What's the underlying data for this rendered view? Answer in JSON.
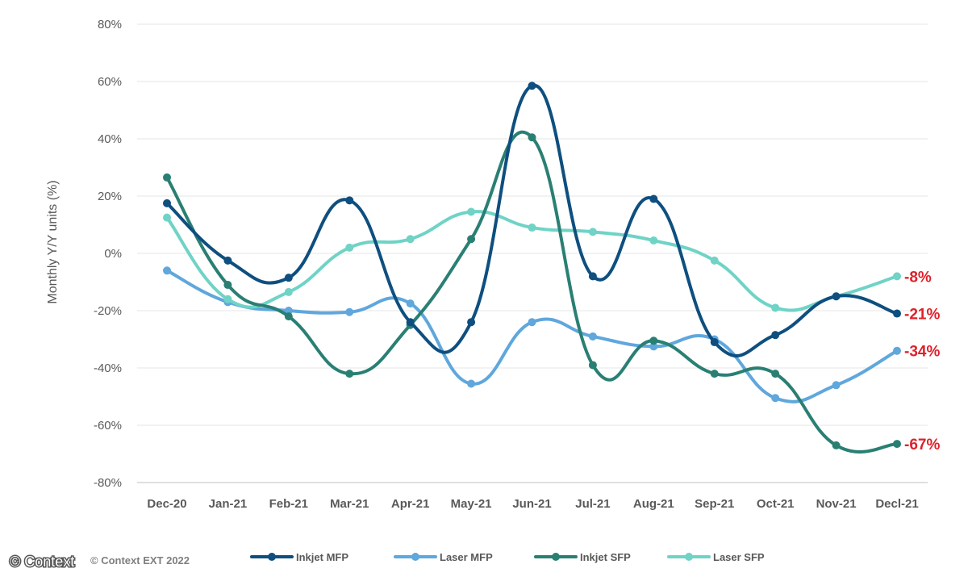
{
  "chart_data": {
    "type": "line",
    "title": "",
    "xlabel": "",
    "ylabel": "Monthly Y/Y units (%)",
    "ylim": [
      -80,
      80
    ],
    "yticks": [
      80,
      60,
      40,
      20,
      0,
      -20,
      -40,
      -60,
      -80
    ],
    "ytick_labels": [
      "80%",
      "60%",
      "40%",
      "20%",
      "0%",
      "-20%",
      "-40%",
      "-60%",
      "-80%"
    ],
    "grid": true,
    "legend_position": "bottom",
    "categories": [
      "Dec-20",
      "Jan-21",
      "Feb-21",
      "Mar-21",
      "Apr-21",
      "May-21",
      "Jun-21",
      "Jul-21",
      "Aug-21",
      "Sep-21",
      "Oct-21",
      "Nov-21",
      "Decl-21"
    ],
    "series": [
      {
        "name": "Inkjet MFP",
        "color": "#0e4f7f",
        "values": [
          17.5,
          -2.5,
          -8.5,
          18.5,
          -24,
          -24,
          58.5,
          -8,
          19,
          -31,
          -28.5,
          -15,
          -21
        ],
        "end_label": "-21%"
      },
      {
        "name": "Laser MFP",
        "color": "#5fa7dc",
        "values": [
          -6,
          -17,
          -20,
          -20.5,
          -17.5,
          -45.5,
          -24,
          -29,
          -32.5,
          -30,
          -50.5,
          -46,
          -34
        ],
        "end_label": "-34%"
      },
      {
        "name": "Inkjet SFP",
        "color": "#2a7f73",
        "values": [
          26.5,
          -11,
          -22,
          -42,
          -25,
          5,
          40.5,
          -39,
          -30.5,
          -42,
          -42,
          -67,
          -66.5
        ],
        "end_label": "-67%"
      },
      {
        "name": "Laser SFP",
        "color": "#6fd3c6",
        "values": [
          12.5,
          -16,
          -13.5,
          2,
          5,
          14.5,
          9,
          7.5,
          4.5,
          -2.5,
          -19,
          -15,
          -8
        ],
        "end_label": "-8%"
      }
    ],
    "source_text": "© Context EXT 2022",
    "watermark_text": "© Context"
  }
}
